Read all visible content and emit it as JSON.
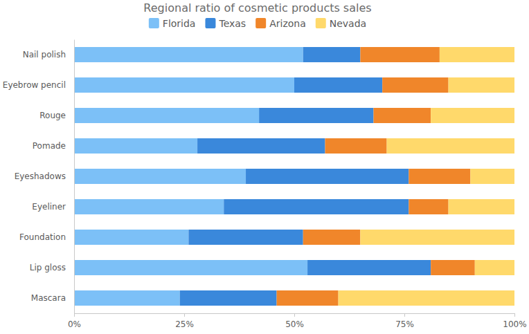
{
  "chart_data": {
    "type": "bar",
    "title": "Regional ratio of cosmetic products sales",
    "orientation": "horizontal",
    "stacked": true,
    "grid": false,
    "legend": "top",
    "categories": [
      "Nail polish",
      "Eyebrow pencil",
      "Rouge",
      "Pomade",
      "Eyeshadows",
      "Eyeliner",
      "Foundation",
      "Lip gloss",
      "Mascara"
    ],
    "series": [
      {
        "name": "Florida",
        "color": "#7cc0f7",
        "values": [
          52,
          50,
          42,
          28,
          39,
          34,
          26,
          53,
          24
        ]
      },
      {
        "name": "Texas",
        "color": "#3a88db",
        "values": [
          13,
          20,
          26,
          29,
          37,
          42,
          26,
          28,
          22
        ]
      },
      {
        "name": "Arizona",
        "color": "#f0862a",
        "values": [
          18,
          15,
          13,
          14,
          14,
          9,
          13,
          10,
          14
        ]
      },
      {
        "name": "Nevada",
        "color": "#ffd96b",
        "values": [
          17,
          15,
          19,
          29,
          10,
          15,
          35,
          9,
          40
        ]
      }
    ],
    "xlim": [
      0,
      100
    ],
    "xticks": [
      {
        "value": 0,
        "label": "0%"
      },
      {
        "value": 25,
        "label": "25%"
      },
      {
        "value": 50,
        "label": "50%"
      },
      {
        "value": 75,
        "label": "75%"
      },
      {
        "value": 100,
        "label": "100%"
      }
    ]
  }
}
